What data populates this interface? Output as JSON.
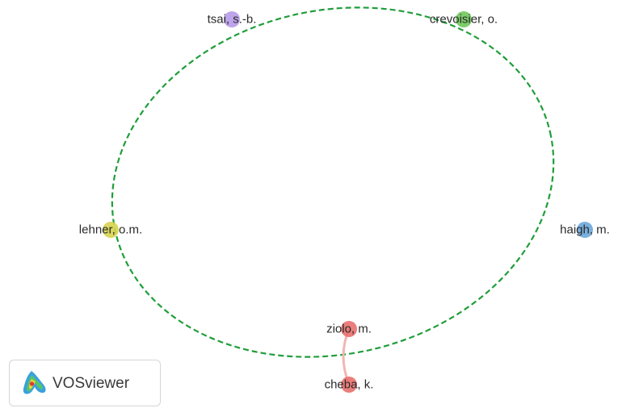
{
  "network": {
    "nodes": [
      {
        "label": "tsai, s.-b.",
        "cluster": "purple",
        "color": "#b79ae8"
      },
      {
        "label": "crevoisier, o.",
        "cluster": "green",
        "color": "#6fc85a"
      },
      {
        "label": "lehner, o.m.",
        "cluster": "yellow",
        "color": "#d6d44e"
      },
      {
        "label": "haigh, m.",
        "cluster": "blue",
        "color": "#6aa7dc"
      },
      {
        "label": "ziolo, m.",
        "cluster": "red",
        "color": "#e8706e"
      },
      {
        "label": "cheba, k.",
        "cluster": "red",
        "color": "#e8706e"
      }
    ],
    "links": [
      {
        "source": "ziolo, m.",
        "target": "cheba, k.",
        "color": "#f2b5b2"
      }
    ],
    "highlight_color": "#1f9e3a"
  },
  "logo": {
    "text": "VOSviewer"
  }
}
